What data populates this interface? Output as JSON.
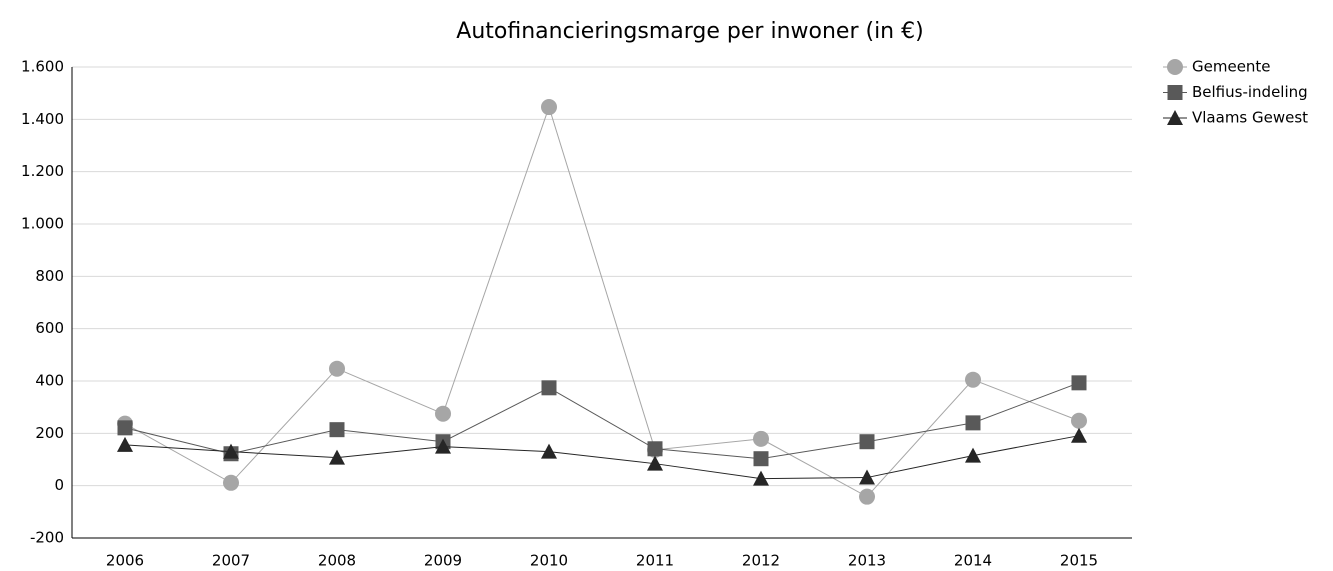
{
  "chart_data": {
    "type": "line",
    "title": "Autofinancieringsmarge per inwoner (in €)",
    "categories": [
      "2006",
      "2007",
      "2008",
      "2009",
      "2010",
      "2011",
      "2012",
      "2013",
      "2014",
      "2015"
    ],
    "series": [
      {
        "name": "Gemeente",
        "color": "#a6a6a6",
        "marker": "circle",
        "values": [
          237,
          11,
          447,
          275,
          1447,
          137,
          179,
          -42,
          405,
          248
        ]
      },
      {
        "name": "Belfius-indeling",
        "color": "#595959",
        "marker": "square",
        "values": [
          221,
          122,
          214,
          168,
          374,
          141,
          103,
          168,
          240,
          393
        ]
      },
      {
        "name": "Vlaams Gewest",
        "color": "#262626",
        "marker": "triangle",
        "values": [
          156,
          130,
          107,
          149,
          130,
          84,
          27,
          31,
          115,
          191
        ]
      }
    ],
    "ylim": [
      -200,
      1600
    ],
    "yticks": [
      -200,
      0,
      200,
      400,
      600,
      {
        "value": 800,
        "label": "800"
      },
      {
        "value": 1000,
        "label": "1.000"
      },
      {
        "value": 1200,
        "label": "1.200"
      },
      {
        "value": 1400,
        "label": "1.400"
      },
      {
        "value": 1600,
        "label": "1.600"
      }
    ],
    "grid": true,
    "legend": "right"
  }
}
